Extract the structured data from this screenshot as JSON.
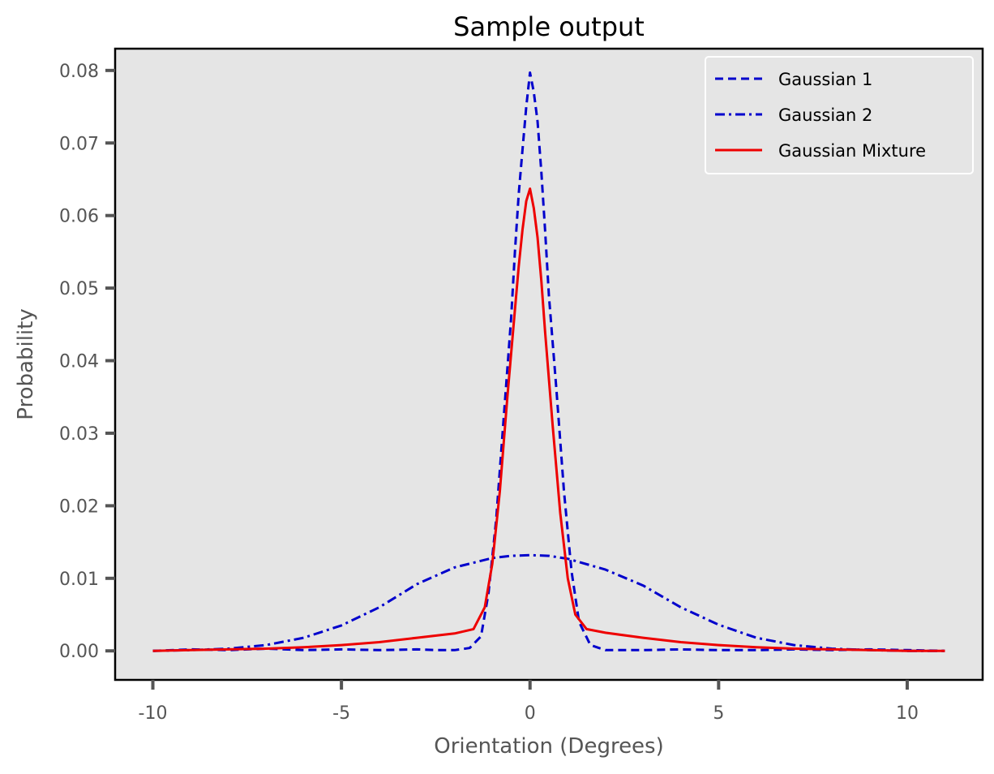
{
  "chart_data": {
    "type": "line",
    "title": "Sample output",
    "xlabel": "Orientation (Degrees)",
    "ylabel": "Probability",
    "xlim": [
      -11,
      12
    ],
    "ylim": [
      -0.004,
      0.083
    ],
    "xticks": [
      -10,
      -5,
      0,
      5,
      10
    ],
    "xtick_labels": [
      "-10",
      "-5",
      "0",
      "5",
      "10"
    ],
    "yticks": [
      0.0,
      0.01,
      0.02,
      0.03,
      0.04,
      0.05,
      0.06,
      0.07,
      0.08
    ],
    "ytick_labels": [
      "0.00",
      "0.01",
      "0.02",
      "0.03",
      "0.04",
      "0.05",
      "0.06",
      "0.07",
      "0.08"
    ],
    "grid": false,
    "legend": "top-right",
    "series": [
      {
        "name": "Gaussian 1",
        "color": "#0000cc",
        "style": "dashed",
        "x": [
          -10,
          -9,
          -8,
          -7,
          -6,
          -5,
          -4,
          -3,
          -2.5,
          -2,
          -1.6,
          -1.3,
          -1.1,
          -0.9,
          -0.7,
          -0.5,
          -0.4,
          -0.3,
          -0.2,
          -0.1,
          0,
          0.1,
          0.2,
          0.3,
          0.4,
          0.5,
          0.7,
          0.9,
          1.1,
          1.3,
          1.6,
          2,
          3,
          4,
          5,
          6,
          7,
          8,
          9,
          10,
          11
        ],
        "y": [
          0,
          0.0002,
          0.0001,
          0.0003,
          0.0001,
          0.0002,
          0.0001,
          0.0002,
          0.0001,
          0.0001,
          0.0004,
          0.002,
          0.008,
          0.018,
          0.032,
          0.046,
          0.055,
          0.063,
          0.069,
          0.075,
          0.0797,
          0.077,
          0.073,
          0.066,
          0.058,
          0.049,
          0.036,
          0.022,
          0.011,
          0.004,
          0.0008,
          0.0001,
          0.0001,
          0.0002,
          0.0001,
          0.0001,
          0.0002,
          0.0001,
          0.0002,
          0.0001,
          0
        ]
      },
      {
        "name": "Gaussian 2",
        "color": "#0000cc",
        "style": "dashdot",
        "x": [
          -10,
          -9,
          -8,
          -7,
          -6,
          -5,
          -4,
          -3,
          -2,
          -1,
          -0.5,
          0,
          0.5,
          1,
          2,
          3,
          4,
          5,
          6,
          7,
          8,
          9,
          10,
          11
        ],
        "y": [
          0,
          0.0001,
          0.0003,
          0.0008,
          0.0018,
          0.0035,
          0.006,
          0.0092,
          0.0115,
          0.0128,
          0.0131,
          0.0132,
          0.0131,
          0.0127,
          0.0112,
          0.009,
          0.006,
          0.0036,
          0.0018,
          0.0008,
          0.0003,
          0.0001,
          0,
          0
        ]
      },
      {
        "name": "Gaussian Mixture",
        "color": "#ee0000",
        "style": "solid",
        "x": [
          -10,
          -9,
          -8,
          -7,
          -6,
          -5,
          -4,
          -3,
          -2,
          -1.5,
          -1.2,
          -1,
          -0.8,
          -0.6,
          -0.4,
          -0.3,
          -0.2,
          -0.1,
          0,
          0.1,
          0.2,
          0.3,
          0.4,
          0.6,
          0.8,
          1,
          1.2,
          1.5,
          2,
          3,
          4,
          5,
          6,
          7,
          8,
          9,
          10,
          11
        ],
        "y": [
          0,
          0.0001,
          0.0002,
          0.0003,
          0.0005,
          0.0008,
          0.0012,
          0.0018,
          0.0024,
          0.003,
          0.006,
          0.012,
          0.022,
          0.035,
          0.047,
          0.053,
          0.058,
          0.062,
          0.0637,
          0.061,
          0.057,
          0.051,
          0.044,
          0.031,
          0.019,
          0.01,
          0.005,
          0.003,
          0.0025,
          0.0018,
          0.0012,
          0.0008,
          0.0005,
          0.0003,
          0.0002,
          0.0001,
          0,
          0
        ]
      }
    ]
  }
}
